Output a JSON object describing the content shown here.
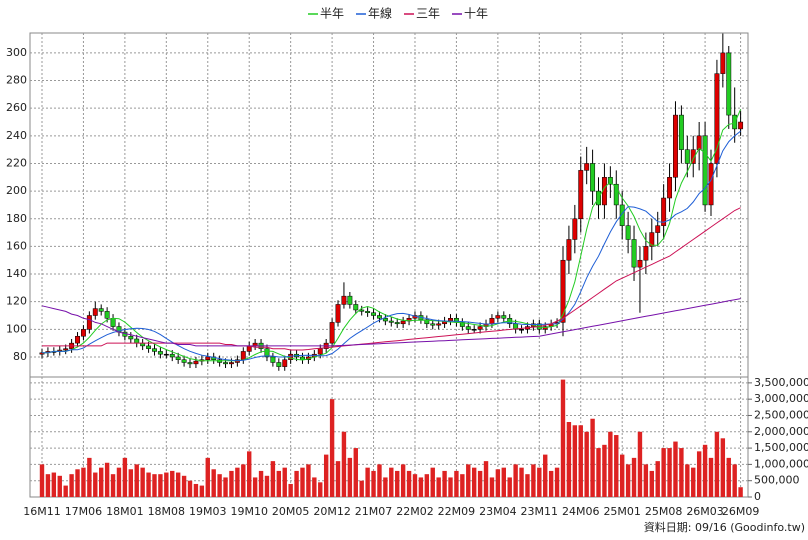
{
  "chart_data": {
    "type": "candlestick",
    "categories": [
      "16M11",
      null,
      null,
      null,
      null,
      null,
      null,
      "17M06",
      null,
      null,
      null,
      null,
      null,
      null,
      "18M01",
      null,
      null,
      null,
      null,
      null,
      null,
      "18M08",
      null,
      null,
      null,
      null,
      null,
      null,
      "19M03",
      null,
      null,
      null,
      null,
      null,
      null,
      "19M10",
      null,
      null,
      null,
      null,
      null,
      null,
      "20M05",
      null,
      null,
      null,
      null,
      null,
      null,
      "20M12",
      null,
      null,
      null,
      null,
      null,
      null,
      "21M07",
      null,
      null,
      null,
      null,
      null,
      null,
      "22M02",
      null,
      null,
      null,
      null,
      null,
      null,
      "22M09",
      null,
      null,
      null,
      null,
      null,
      null,
      "23M04",
      null,
      null,
      null,
      null,
      null,
      null,
      "23M11",
      null,
      null,
      null,
      null,
      null,
      null,
      "24M06",
      null,
      null,
      null,
      null,
      null,
      null,
      "25M01",
      null,
      null,
      null,
      null,
      null,
      null,
      "25M08",
      null,
      null,
      null,
      null,
      null,
      null,
      "26M03",
      null,
      null,
      null,
      null,
      null,
      "26M09"
    ],
    "open": [
      82,
      83,
      84,
      84,
      85,
      86,
      90,
      95,
      100,
      110,
      115,
      113,
      108,
      102,
      98,
      95,
      93,
      90,
      88,
      86,
      84,
      82,
      82,
      80,
      78,
      76,
      75,
      77,
      78,
      80,
      78,
      76,
      75,
      76,
      78,
      84,
      88,
      90,
      86,
      80,
      76,
      73,
      78,
      82,
      80,
      78,
      80,
      82,
      86,
      90,
      105,
      118,
      124,
      118,
      114,
      113,
      112,
      110,
      108,
      106,
      105,
      104,
      106,
      108,
      110,
      107,
      104,
      103,
      104,
      106,
      108,
      105,
      102,
      100,
      100,
      102,
      104,
      108,
      110,
      108,
      104,
      100,
      100,
      102,
      104,
      100,
      102,
      104,
      105,
      150,
      165,
      180,
      215,
      220,
      200,
      190,
      210,
      205,
      190,
      175,
      165,
      145,
      150,
      160,
      170,
      175,
      195,
      210,
      255,
      230,
      220,
      230,
      240,
      190,
      220,
      285,
      300,
      255,
      245
    ],
    "high": [
      86,
      87,
      87,
      88,
      89,
      93,
      98,
      103,
      113,
      120,
      118,
      116,
      111,
      105,
      101,
      98,
      96,
      93,
      91,
      89,
      87,
      85,
      85,
      83,
      81,
      79,
      80,
      81,
      83,
      83,
      81,
      79,
      79,
      81,
      87,
      91,
      93,
      93,
      89,
      83,
      79,
      81,
      85,
      85,
      83,
      83,
      85,
      89,
      93,
      108,
      121,
      134,
      127,
      121,
      117,
      116,
      115,
      113,
      111,
      109,
      108,
      109,
      111,
      113,
      113,
      110,
      107,
      107,
      109,
      111,
      111,
      108,
      105,
      103,
      105,
      107,
      111,
      113,
      113,
      111,
      107,
      103,
      105,
      107,
      107,
      105,
      107,
      108,
      160,
      175,
      190,
      225,
      232,
      230,
      210,
      220,
      218,
      215,
      200,
      185,
      175,
      160,
      170,
      180,
      185,
      205,
      220,
      265,
      262,
      240,
      240,
      250,
      250,
      230,
      295,
      314,
      305,
      275,
      258
    ],
    "low": [
      79,
      80,
      81,
      81,
      82,
      83,
      87,
      92,
      97,
      107,
      110,
      105,
      99,
      95,
      92,
      90,
      87,
      85,
      83,
      81,
      79,
      79,
      77,
      75,
      73,
      72,
      72,
      74,
      75,
      75,
      73,
      72,
      72,
      73,
      75,
      81,
      85,
      83,
      77,
      73,
      70,
      70,
      75,
      77,
      75,
      75,
      77,
      79,
      83,
      87,
      102,
      115,
      115,
      111,
      110,
      109,
      107,
      105,
      103,
      102,
      101,
      101,
      103,
      105,
      104,
      101,
      100,
      100,
      101,
      103,
      102,
      99,
      97,
      97,
      97,
      99,
      101,
      105,
      105,
      101,
      97,
      97,
      97,
      99,
      97,
      97,
      99,
      101,
      95,
      140,
      155,
      170,
      205,
      190,
      180,
      180,
      195,
      180,
      165,
      155,
      135,
      112,
      140,
      150,
      160,
      165,
      185,
      200,
      220,
      210,
      210,
      215,
      185,
      182,
      210,
      275,
      245,
      235,
      240
    ],
    "close": [
      83,
      84,
      84,
      85,
      86,
      90,
      95,
      100,
      110,
      115,
      113,
      108,
      102,
      98,
      95,
      93,
      90,
      88,
      86,
      84,
      82,
      82,
      80,
      78,
      76,
      75,
      77,
      78,
      80,
      78,
      76,
      75,
      76,
      78,
      84,
      88,
      90,
      86,
      80,
      76,
      73,
      78,
      82,
      80,
      78,
      80,
      82,
      86,
      90,
      105,
      118,
      124,
      118,
      114,
      113,
      112,
      110,
      108,
      106,
      105,
      104,
      106,
      108,
      110,
      107,
      104,
      103,
      104,
      106,
      108,
      105,
      102,
      100,
      100,
      102,
      104,
      108,
      110,
      108,
      104,
      100,
      100,
      102,
      104,
      100,
      102,
      104,
      105,
      150,
      165,
      180,
      215,
      220,
      200,
      190,
      210,
      205,
      190,
      175,
      165,
      145,
      150,
      160,
      170,
      175,
      195,
      210,
      255,
      230,
      220,
      230,
      240,
      190,
      220,
      285,
      300,
      255,
      245,
      250
    ],
    "up_color": "#dd0000",
    "down_color": "#22cc22",
    "series": [
      {
        "name": "半年",
        "color": "#22cc22",
        "values": [
          83,
          83,
          84,
          84,
          84,
          85.3,
          87.3,
          90,
          94.3,
          99.3,
          103.8,
          106.8,
          108,
          107.7,
          105.2,
          101.5,
          97.7,
          94.3,
          91.7,
          89.3,
          87.2,
          85.3,
          83.7,
          82,
          80.3,
          78.8,
          78,
          77.3,
          77.3,
          77.3,
          77.3,
          77.3,
          77.2,
          77.2,
          77.8,
          79.5,
          81.8,
          83.7,
          84.3,
          84,
          82.2,
          80.5,
          79.2,
          78.2,
          77.8,
          78.5,
          80,
          81.3,
          82.7,
          86.8,
          93.5,
          100.8,
          106.8,
          111.5,
          115.3,
          116.5,
          115.2,
          112.5,
          110.5,
          109,
          107.5,
          106.5,
          106.2,
          106.5,
          106.7,
          106.5,
          106.3,
          106,
          105.7,
          105.3,
          105,
          104.7,
          104.2,
          103.5,
          102.8,
          102.2,
          102.7,
          104,
          105.3,
          106,
          105.7,
          105,
          104,
          103,
          101.7,
          101.3,
          102,
          102.8,
          110.8,
          121,
          134.3,
          153.2,
          172.5,
          188.3,
          195,
          202.5,
          206.7,
          202.5,
          195,
          189.2,
          181.7,
          171.7,
          164.2,
          160.8,
          160.8,
          165.8,
          176.7,
          194.2,
          205.8,
          214.2,
          223.3,
          230.8,
          227.5,
          221.7,
          230.8,
          244.2,
          248.3,
          249.2,
          259.2
        ]
      },
      {
        "name": "年線",
        "color": "#1f5fd6",
        "values": [
          83,
          83,
          84,
          84,
          84,
          85.3,
          85.2,
          86.5,
          89.2,
          91.7,
          93.9,
          96.1,
          97.7,
          98.9,
          99.8,
          100.4,
          100.8,
          100.6,
          99.9,
          98.5,
          96.2,
          93.4,
          90.7,
          88.2,
          86,
          84.1,
          82.6,
          81.3,
          80.5,
          79.7,
          78.8,
          78.1,
          77.6,
          77.3,
          77.6,
          78.4,
          79.6,
          80.5,
          80.8,
          80.6,
          80,
          80,
          80.5,
          81,
          81.1,
          81.3,
          81.1,
          80.9,
          81,
          82.5,
          85.7,
          89.7,
          93.4,
          96.4,
          99,
          101.7,
          104.4,
          106.7,
          108.7,
          110.3,
          111.4,
          111.5,
          110.7,
          109.5,
          108.6,
          107.8,
          106.9,
          106.3,
          106,
          105.9,
          105.9,
          105.6,
          105.3,
          104.8,
          104.3,
          103.8,
          103.9,
          104.4,
          104.8,
          104.8,
          104.3,
          103.6,
          103.4,
          103.5,
          103.5,
          103.7,
          103.9,
          103.9,
          107.4,
          112,
          118,
          127.3,
          137.3,
          145.6,
          152.9,
          161.8,
          170.5,
          177.9,
          183.8,
          188.8,
          188.4,
          187.1,
          185.5,
          181.7,
          177.9,
          177.5,
          179.2,
          183,
          185,
          187.5,
          192.1,
          198.3,
          202.1,
          208,
          218.3,
          229.2,
          235.8,
          240,
          243.4
        ]
      },
      {
        "name": "三年",
        "color": "#cc1155",
        "values": [
          88,
          88,
          88,
          88,
          88,
          88,
          88,
          88,
          88,
          88,
          88,
          90,
          90,
          90,
          90,
          90,
          90,
          90,
          90,
          90,
          90,
          90,
          90,
          90,
          90,
          90,
          90,
          90,
          90,
          90,
          90,
          89,
          89,
          88,
          88,
          88,
          87,
          87,
          87,
          86,
          86,
          86,
          85,
          85,
          85,
          85.4,
          85.9,
          86.3,
          86.7,
          87.1,
          87.6,
          88,
          88.4,
          88.8,
          89.3,
          89.7,
          90.1,
          90.5,
          91,
          91.4,
          91.8,
          92.2,
          92.7,
          93.1,
          93.5,
          93.9,
          94.4,
          94.8,
          95.2,
          95.6,
          96.1,
          96.5,
          96.9,
          97.3,
          97.8,
          98.2,
          98.6,
          99,
          99.5,
          99.9,
          100.3,
          100.7,
          101.2,
          101.6,
          102,
          103,
          104,
          106,
          108,
          111,
          114,
          117,
          120,
          123,
          126,
          129,
          132,
          135,
          137,
          139,
          141,
          143,
          145,
          147,
          149,
          151,
          153,
          156,
          159,
          162,
          165,
          168,
          171,
          174,
          177,
          180,
          183,
          186,
          188
        ]
      },
      {
        "name": "十年",
        "color": "#7711aa",
        "values": [
          117,
          116,
          115,
          114,
          113,
          111,
          110,
          108,
          107,
          105,
          104,
          102,
          100,
          98,
          97,
          96,
          95,
          94,
          93,
          92,
          91,
          90,
          90,
          89,
          89,
          89,
          88,
          88,
          88,
          88,
          88,
          88,
          88,
          88,
          88,
          88,
          88,
          88,
          88,
          88,
          88,
          88,
          88,
          88,
          88,
          88,
          88,
          88,
          88,
          88,
          88.2,
          88.4,
          88.6,
          88.8,
          89,
          89.2,
          89.4,
          89.6,
          89.8,
          90,
          90.2,
          90.4,
          90.6,
          90.8,
          91,
          91.2,
          91.4,
          91.6,
          91.8,
          92,
          92.2,
          92.4,
          92.6,
          92.8,
          93,
          93.2,
          93.4,
          93.6,
          93.8,
          94,
          94.2,
          94.4,
          94.6,
          94.8,
          95,
          95.8,
          96.6,
          97.4,
          98.2,
          99,
          99.8,
          100.6,
          101.4,
          102.2,
          103,
          103.8,
          104.6,
          105.4,
          106.2,
          107,
          107.8,
          108.6,
          109.4,
          110.2,
          111,
          111.8,
          112.6,
          113.4,
          114.2,
          115,
          115.8,
          116.6,
          117.4,
          118.2,
          119,
          119.8,
          120.6,
          121.4,
          122.2
        ]
      }
    ],
    "ylim": [
      65.5,
      314.4
    ],
    "yticks": [
      80,
      100,
      120,
      140,
      160,
      180,
      200,
      220,
      240,
      260,
      280,
      300
    ],
    "volume": {
      "color": "#dd2222",
      "values": [
        1000000,
        700000,
        750000,
        650000,
        350000,
        700000,
        850000,
        900000,
        1200000,
        750000,
        900000,
        1050000,
        700000,
        900000,
        1200000,
        850000,
        1000000,
        900000,
        750000,
        700000,
        700000,
        750000,
        800000,
        750000,
        650000,
        500000,
        400000,
        350000,
        1200000,
        850000,
        700000,
        600000,
        800000,
        900000,
        1000000,
        1400000,
        600000,
        800000,
        650000,
        1100000,
        800000,
        900000,
        400000,
        800000,
        900000,
        1000000,
        600000,
        450000,
        1300000,
        3000000,
        1100000,
        2000000,
        1200000,
        1500000,
        500000,
        900000,
        800000,
        1000000,
        600000,
        900000,
        800000,
        1000000,
        800000,
        700000,
        600000,
        700000,
        900000,
        600000,
        800000,
        600000,
        800000,
        700000,
        1000000,
        900000,
        800000,
        1100000,
        600000,
        850000,
        900000,
        600000,
        1000000,
        900000,
        700000,
        1000000,
        900000,
        1300000,
        800000,
        900000,
        3600000,
        2300000,
        2200000,
        2200000,
        2000000,
        2400000,
        1500000,
        1600000,
        2000000,
        1900000,
        1300000,
        1000000,
        1200000,
        2000000,
        1000000,
        800000,
        1100000,
        1500000,
        1500000,
        1700000,
        1500000,
        1000000,
        900000,
        1400000,
        1600000,
        1200000,
        2000000,
        1800000,
        1200000,
        1000000,
        300000
      ],
      "ylim": [
        0,
        3680000
      ],
      "yticks": [
        0,
        {
          "value": 500000,
          "label": "500,000"
        },
        {
          "value": 1000000,
          "label": "1,000,000"
        },
        {
          "value": 1500000,
          "label": "1,500,000"
        },
        {
          "value": 2000000,
          "label": "2,000,000"
        },
        {
          "value": 2500000,
          "label": "2,500,000"
        },
        {
          "value": 3000000,
          "label": "3,000,000"
        },
        {
          "value": 3500000,
          "label": "3,500,000"
        }
      ]
    },
    "grid": true,
    "legend": "top",
    "footer": "資料日期: 09/16  (Goodinfo.tw)"
  }
}
